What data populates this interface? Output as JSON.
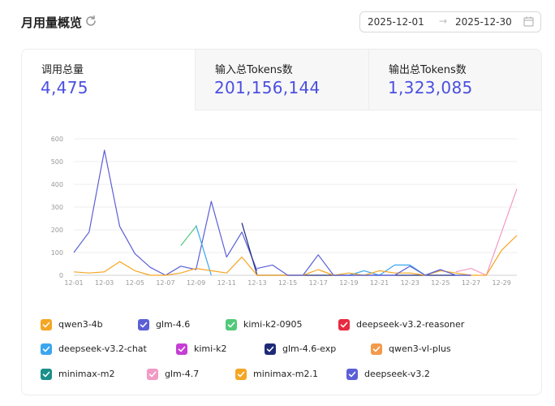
{
  "header": {
    "title": "月用量概览"
  },
  "date_range": {
    "start": "2025-12-01",
    "arrow": "→",
    "end": "2025-12-30"
  },
  "tabs": [
    {
      "label": "调用总量",
      "value": "4,475"
    },
    {
      "label": "输入总Tokens数",
      "value": "201,156,144"
    },
    {
      "label": "输出总Tokens数",
      "value": "1,323,085"
    }
  ],
  "chart_data": {
    "type": "line",
    "ylim": [
      0,
      600
    ],
    "yticks": [
      0,
      100,
      200,
      300,
      400,
      500,
      600
    ],
    "x": [
      "12-01",
      "12-02",
      "12-03",
      "12-04",
      "12-05",
      "12-06",
      "12-07",
      "12-08",
      "12-09",
      "12-10",
      "12-11",
      "12-12",
      "12-13",
      "12-14",
      "12-15",
      "12-16",
      "12-17",
      "12-18",
      "12-19",
      "12-20",
      "12-21",
      "12-22",
      "12-23",
      "12-24",
      "12-25",
      "12-26",
      "12-27",
      "12-28",
      "12-29",
      "12-30"
    ],
    "xtick_labels": [
      "12-01",
      "12-03",
      "12-05",
      "12-07",
      "12-09",
      "12-11",
      "12-13",
      "12-15",
      "12-17",
      "12-19",
      "12-21",
      "12-23",
      "12-25",
      "12-27",
      "12-29"
    ],
    "grid": true,
    "series": [
      {
        "name": "qwen3-4b",
        "color": "#f5a623",
        "values": [
          null,
          null,
          null,
          null,
          null,
          null,
          null,
          null,
          null,
          null,
          null,
          null,
          null,
          null,
          null,
          null,
          null,
          null,
          null,
          null,
          null,
          null,
          null,
          null,
          null,
          null,
          null,
          null,
          null,
          null
        ]
      },
      {
        "name": "glm-4.6",
        "color": "#5b5fd6",
        "values": [
          100,
          190,
          550,
          215,
          95,
          35,
          0,
          40,
          25,
          325,
          80,
          190,
          20,
          null,
          null,
          null,
          null,
          null,
          null,
          null,
          null,
          null,
          null,
          null,
          null,
          null,
          null,
          null,
          null,
          null
        ]
      },
      {
        "name": "kimi-k2-0905",
        "color": "#52c97a",
        "values": [
          null,
          null,
          null,
          null,
          null,
          null,
          null,
          130,
          215,
          null,
          null,
          null,
          null,
          null,
          null,
          null,
          null,
          null,
          null,
          null,
          null,
          null,
          null,
          null,
          null,
          null,
          null,
          null,
          null,
          null
        ]
      },
      {
        "name": "deepseek-v3.2-reasoner",
        "color": "#e8293f",
        "values": [
          null,
          null,
          null,
          null,
          null,
          null,
          null,
          null,
          null,
          null,
          null,
          null,
          null,
          null,
          null,
          null,
          null,
          null,
          null,
          null,
          null,
          null,
          null,
          null,
          null,
          null,
          null,
          null,
          null,
          null
        ]
      },
      {
        "name": "deepseek-v3.2-chat",
        "color": "#3aa6f0",
        "values": [
          null,
          null,
          null,
          null,
          null,
          null,
          null,
          null,
          220,
          0,
          null,
          null,
          null,
          null,
          null,
          null,
          null,
          0,
          0,
          20,
          0,
          45,
          45,
          0,
          25,
          0,
          null,
          null,
          null,
          null
        ]
      },
      {
        "name": "kimi-k2",
        "color": "#c63dd4",
        "values": [
          null,
          null,
          null,
          null,
          null,
          null,
          null,
          null,
          null,
          null,
          null,
          null,
          null,
          null,
          null,
          null,
          null,
          null,
          null,
          null,
          null,
          null,
          null,
          null,
          null,
          null,
          null,
          null,
          null,
          null
        ]
      },
      {
        "name": "glm-4.6-exp",
        "color": "#1e2a78",
        "values": [
          null,
          null,
          null,
          null,
          null,
          null,
          null,
          null,
          null,
          null,
          null,
          230,
          0,
          0,
          0,
          0,
          0,
          0,
          0,
          0,
          0,
          0,
          0,
          0,
          0,
          0,
          0,
          null,
          null,
          null
        ]
      },
      {
        "name": "qwen3-vl-plus",
        "color": "#f39a4a",
        "values": [
          null,
          null,
          null,
          null,
          null,
          null,
          null,
          null,
          null,
          null,
          null,
          null,
          null,
          null,
          null,
          null,
          null,
          null,
          null,
          null,
          null,
          null,
          null,
          null,
          null,
          null,
          null,
          null,
          null,
          null
        ]
      },
      {
        "name": "minimax-m2",
        "color": "#1b8f8a",
        "values": [
          null,
          null,
          null,
          null,
          null,
          null,
          null,
          null,
          null,
          null,
          null,
          null,
          null,
          null,
          null,
          null,
          null,
          null,
          null,
          null,
          null,
          null,
          null,
          null,
          null,
          null,
          null,
          null,
          null,
          null
        ]
      },
      {
        "name": "glm-4.7",
        "color": "#f29ac4",
        "values": [
          null,
          null,
          null,
          null,
          null,
          null,
          null,
          null,
          null,
          null,
          null,
          null,
          null,
          null,
          null,
          null,
          null,
          null,
          null,
          null,
          null,
          null,
          null,
          null,
          null,
          15,
          30,
          0,
          190,
          380
        ]
      },
      {
        "name": "minimax-m2.1",
        "color": "#f5a623",
        "values": [
          15,
          10,
          15,
          60,
          20,
          0,
          0,
          10,
          30,
          20,
          10,
          80,
          0,
          0,
          0,
          0,
          25,
          0,
          10,
          0,
          20,
          10,
          10,
          0,
          20,
          10,
          0,
          0,
          110,
          175
        ]
      },
      {
        "name": "deepseek-v3.2",
        "color": "#5b5fd6",
        "values": [
          null,
          null,
          null,
          null,
          null,
          null,
          null,
          null,
          null,
          null,
          null,
          null,
          30,
          45,
          0,
          0,
          90,
          0,
          0,
          0,
          0,
          0,
          40,
          0,
          25,
          0,
          0,
          null,
          null,
          null
        ]
      }
    ]
  }
}
